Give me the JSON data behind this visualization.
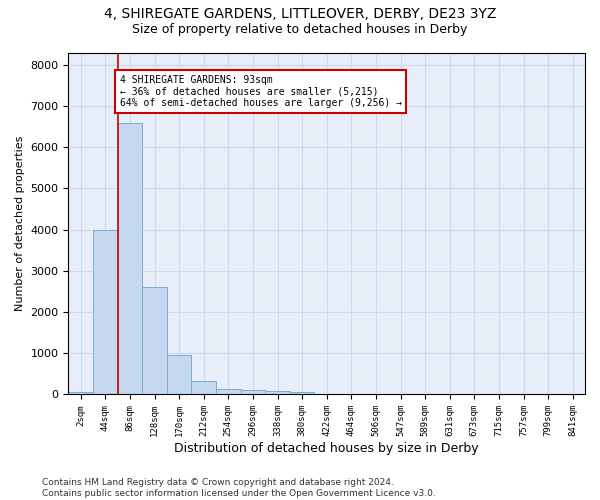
{
  "title1": "4, SHIREGATE GARDENS, LITTLEOVER, DERBY, DE23 3YZ",
  "title2": "Size of property relative to detached houses in Derby",
  "xlabel": "Distribution of detached houses by size in Derby",
  "ylabel": "Number of detached properties",
  "footnote": "Contains HM Land Registry data © Crown copyright and database right 2024.\nContains public sector information licensed under the Open Government Licence v3.0.",
  "bin_labels": [
    "2sqm",
    "44sqm",
    "86sqm",
    "128sqm",
    "170sqm",
    "212sqm",
    "254sqm",
    "296sqm",
    "338sqm",
    "380sqm",
    "422sqm",
    "464sqm",
    "506sqm",
    "547sqm",
    "589sqm",
    "631sqm",
    "673sqm",
    "715sqm",
    "757sqm",
    "799sqm",
    "841sqm"
  ],
  "bar_values": [
    60,
    4000,
    6600,
    2620,
    950,
    320,
    135,
    120,
    80,
    70,
    0,
    0,
    0,
    0,
    0,
    0,
    0,
    0,
    0,
    0,
    0
  ],
  "bar_color": "#c5d8f0",
  "bar_edge_color": "#7aadd4",
  "property_line_x": 1.5,
  "property_line_color": "#cc0000",
  "annotation_text": "4 SHIREGATE GARDENS: 93sqm\n← 36% of detached houses are smaller (5,215)\n64% of semi-detached houses are larger (9,256) →",
  "annotation_box_color": "#ffffff",
  "annotation_box_edge_color": "#cc0000",
  "ylim": [
    0,
    8300
  ],
  "yticks": [
    0,
    1000,
    2000,
    3000,
    4000,
    5000,
    6000,
    7000,
    8000
  ],
  "grid_color": "#cdd8ee",
  "background_color": "#e8eef8",
  "title1_fontsize": 10,
  "title2_fontsize": 9,
  "xlabel_fontsize": 9,
  "ylabel_fontsize": 8,
  "footnote_fontsize": 6.5
}
